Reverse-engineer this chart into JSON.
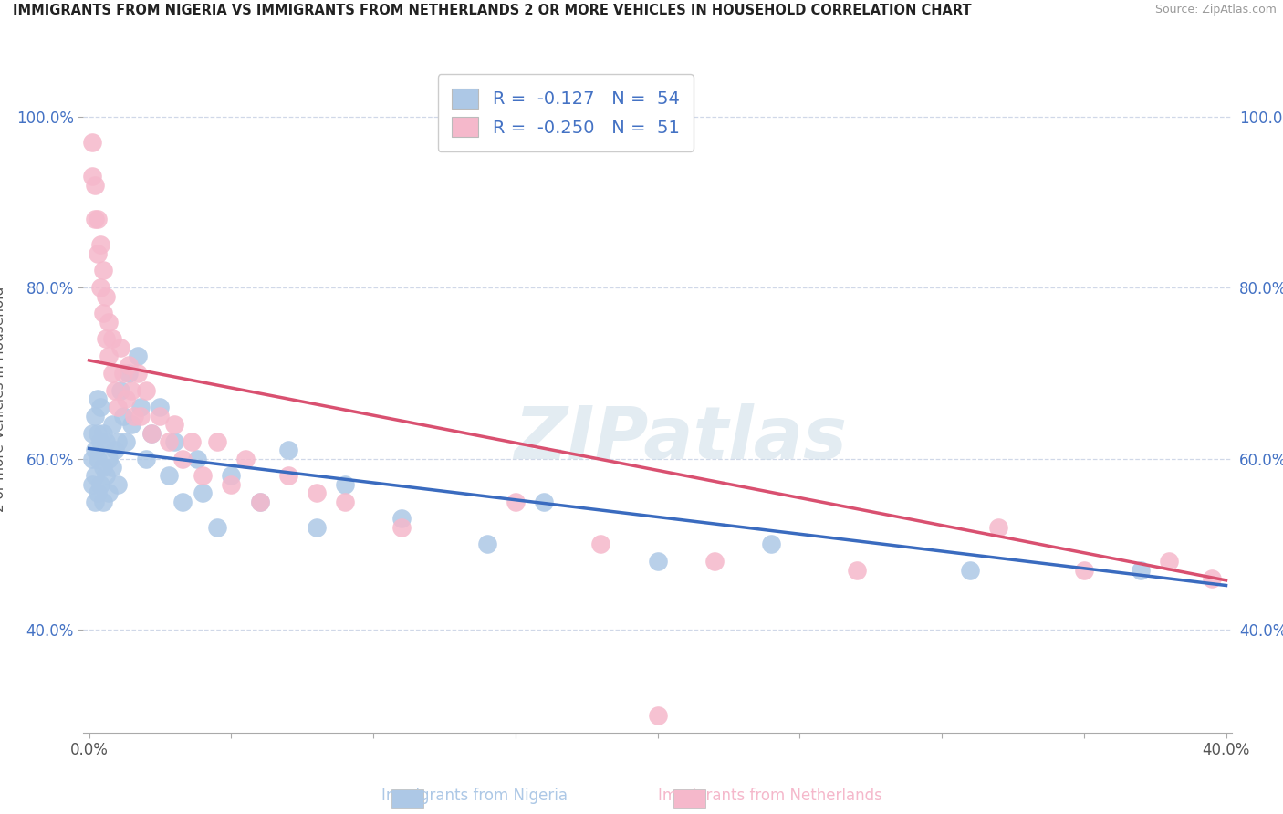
{
  "title": "IMMIGRANTS FROM NIGERIA VS IMMIGRANTS FROM NETHERLANDS 2 OR MORE VEHICLES IN HOUSEHOLD CORRELATION CHART",
  "source": "Source: ZipAtlas.com",
  "ylabel": "2 or more Vehicles in Household",
  "x_label_nigeria": "Immigrants from Nigeria",
  "x_label_netherlands": "Immigrants from Netherlands",
  "xlim": [
    -0.002,
    0.402
  ],
  "ylim": [
    0.28,
    1.06
  ],
  "yticks": [
    0.4,
    0.6,
    0.8,
    1.0
  ],
  "ytick_labels": [
    "40.0%",
    "60.0%",
    "80.0%",
    "100.0%"
  ],
  "xticks": [
    0.0,
    0.05,
    0.1,
    0.15,
    0.2,
    0.25,
    0.3,
    0.35,
    0.4
  ],
  "xlabels_shown": {
    "0.0": "0.0%",
    "0.4": "40.0%"
  },
  "nigeria_color": "#adc8e6",
  "netherlands_color": "#f5b8cb",
  "nigeria_line_color": "#3a6bbf",
  "netherlands_line_color": "#d95070",
  "nigeria_R": -0.127,
  "nigeria_N": 54,
  "netherlands_R": -0.25,
  "netherlands_N": 51,
  "nigeria_line_y0": 0.612,
  "nigeria_line_y1": 0.452,
  "netherlands_line_y0": 0.715,
  "netherlands_line_y1": 0.458,
  "watermark": "ZIPatlas",
  "watermark_color": "#ccdde8",
  "background_color": "#ffffff",
  "grid_color": "#d0d8e8",
  "nigeria_x": [
    0.001,
    0.001,
    0.001,
    0.002,
    0.002,
    0.002,
    0.002,
    0.003,
    0.003,
    0.003,
    0.003,
    0.004,
    0.004,
    0.004,
    0.005,
    0.005,
    0.005,
    0.006,
    0.006,
    0.007,
    0.007,
    0.008,
    0.008,
    0.009,
    0.01,
    0.01,
    0.011,
    0.012,
    0.013,
    0.014,
    0.015,
    0.017,
    0.018,
    0.02,
    0.022,
    0.025,
    0.028,
    0.03,
    0.033,
    0.038,
    0.04,
    0.045,
    0.05,
    0.06,
    0.07,
    0.08,
    0.09,
    0.11,
    0.14,
    0.16,
    0.2,
    0.24,
    0.31,
    0.37
  ],
  "nigeria_y": [
    0.57,
    0.6,
    0.63,
    0.55,
    0.58,
    0.61,
    0.65,
    0.56,
    0.6,
    0.63,
    0.67,
    0.57,
    0.62,
    0.66,
    0.55,
    0.59,
    0.63,
    0.58,
    0.62,
    0.56,
    0.6,
    0.59,
    0.64,
    0.61,
    0.57,
    0.62,
    0.68,
    0.65,
    0.62,
    0.7,
    0.64,
    0.72,
    0.66,
    0.6,
    0.63,
    0.66,
    0.58,
    0.62,
    0.55,
    0.6,
    0.56,
    0.52,
    0.58,
    0.55,
    0.61,
    0.52,
    0.57,
    0.53,
    0.5,
    0.55,
    0.48,
    0.5,
    0.47,
    0.47
  ],
  "netherlands_x": [
    0.001,
    0.001,
    0.002,
    0.002,
    0.003,
    0.003,
    0.004,
    0.004,
    0.005,
    0.005,
    0.006,
    0.006,
    0.007,
    0.007,
    0.008,
    0.008,
    0.009,
    0.01,
    0.011,
    0.012,
    0.013,
    0.014,
    0.015,
    0.016,
    0.017,
    0.018,
    0.02,
    0.022,
    0.025,
    0.028,
    0.03,
    0.033,
    0.036,
    0.04,
    0.045,
    0.05,
    0.055,
    0.06,
    0.07,
    0.08,
    0.09,
    0.11,
    0.15,
    0.18,
    0.22,
    0.27,
    0.32,
    0.35,
    0.38,
    0.395,
    0.2
  ],
  "netherlands_y": [
    0.93,
    0.97,
    0.88,
    0.92,
    0.84,
    0.88,
    0.8,
    0.85,
    0.77,
    0.82,
    0.74,
    0.79,
    0.72,
    0.76,
    0.7,
    0.74,
    0.68,
    0.66,
    0.73,
    0.7,
    0.67,
    0.71,
    0.68,
    0.65,
    0.7,
    0.65,
    0.68,
    0.63,
    0.65,
    0.62,
    0.64,
    0.6,
    0.62,
    0.58,
    0.62,
    0.57,
    0.6,
    0.55,
    0.58,
    0.56,
    0.55,
    0.52,
    0.55,
    0.5,
    0.48,
    0.47,
    0.52,
    0.47,
    0.48,
    0.46,
    0.3
  ]
}
